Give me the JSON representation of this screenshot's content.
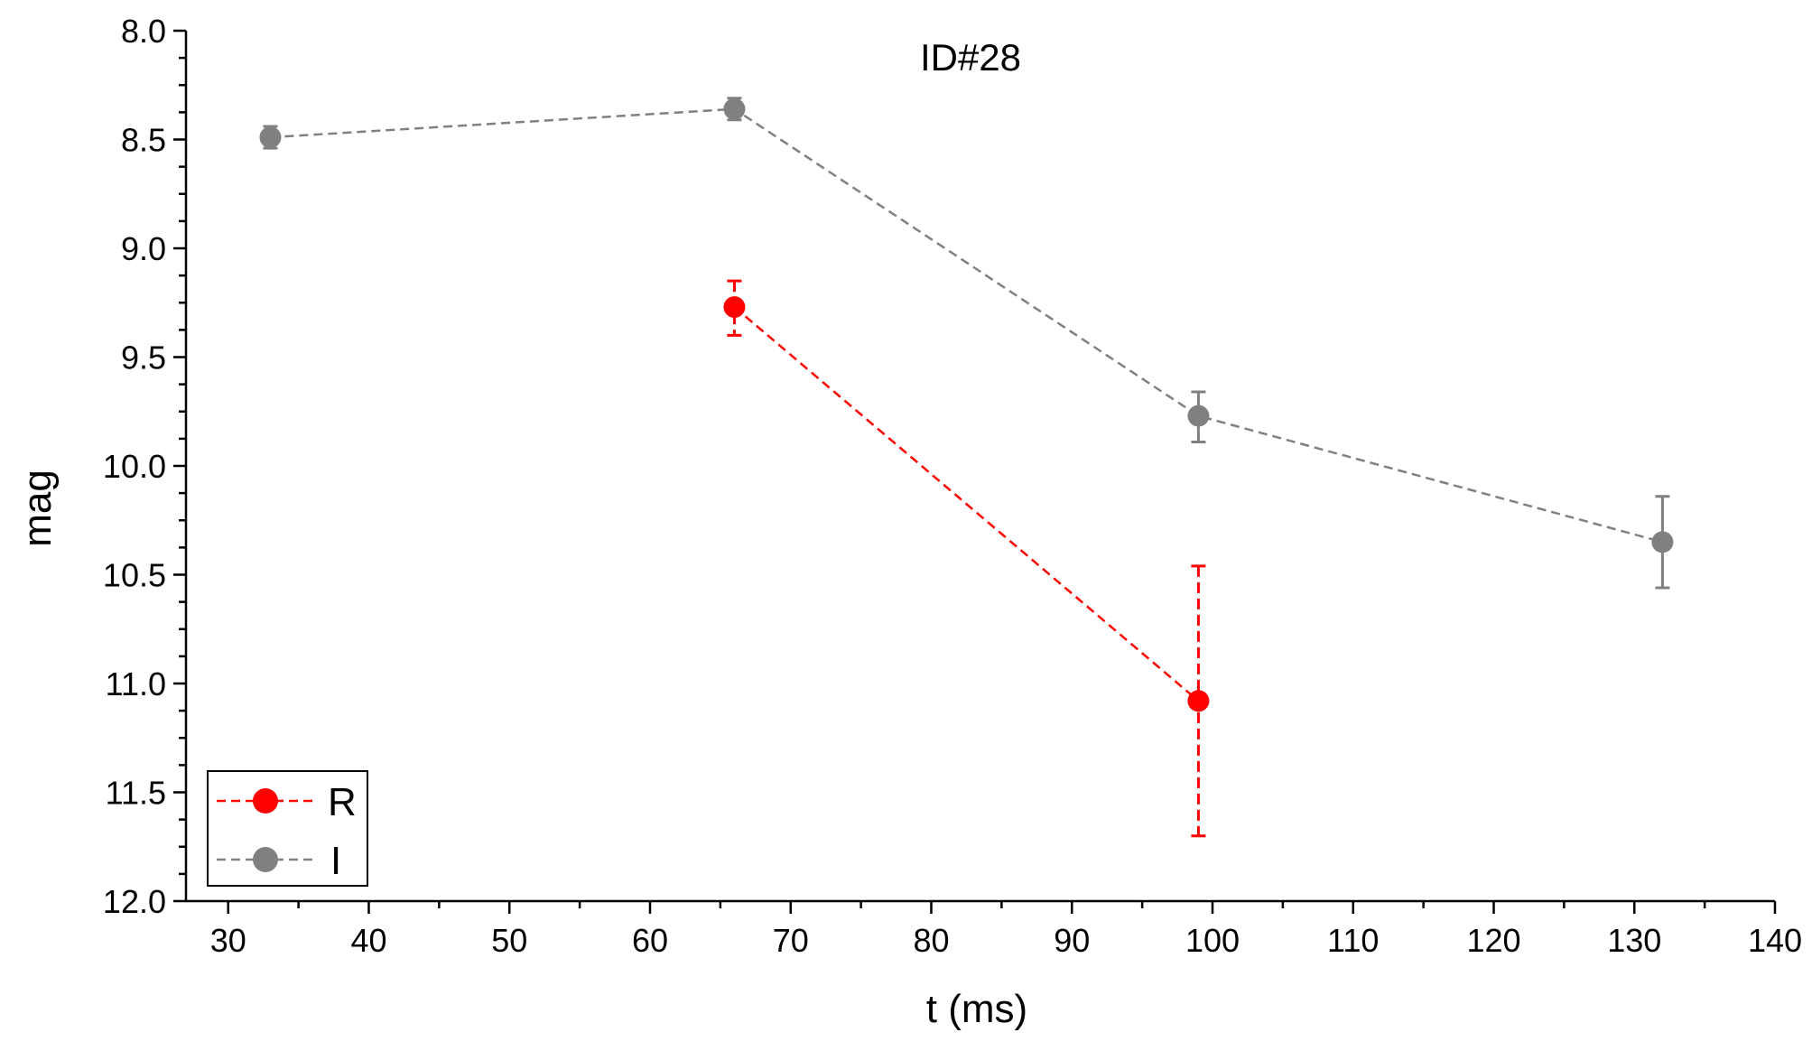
{
  "chart_data": {
    "type": "scatter",
    "title": "ID#28",
    "xlabel": "t (ms)",
    "ylabel": "mag",
    "xlim": [
      27,
      140
    ],
    "ylim": [
      8.0,
      12.0
    ],
    "y_inverted": true,
    "xticks": [
      30,
      40,
      50,
      60,
      70,
      80,
      90,
      100,
      110,
      120,
      130,
      140
    ],
    "yticks": [
      8.0,
      8.5,
      9.0,
      9.5,
      10.0,
      10.5,
      11.0,
      11.5,
      12.0
    ],
    "ytick_labels": [
      "8.0",
      "8.5",
      "9.0",
      "9.5",
      "10.0",
      "10.5",
      "11.0",
      "11.5",
      "12.0"
    ],
    "legend_position": "bottom-left",
    "series": [
      {
        "name": "R",
        "color": "#ff0000",
        "line_style": "dashed",
        "x": [
          66,
          99
        ],
        "y": [
          9.27,
          11.08
        ],
        "err_low": [
          9.15,
          10.46
        ],
        "err_high": [
          9.4,
          11.7
        ]
      },
      {
        "name": "I",
        "color": "#808080",
        "line_style": "dashed",
        "x": [
          33,
          66,
          99,
          132
        ],
        "y": [
          8.49,
          8.36,
          9.77,
          10.35
        ],
        "err_low": [
          8.44,
          8.31,
          9.66,
          10.14
        ],
        "err_high": [
          8.54,
          8.41,
          9.89,
          10.56
        ]
      }
    ]
  }
}
